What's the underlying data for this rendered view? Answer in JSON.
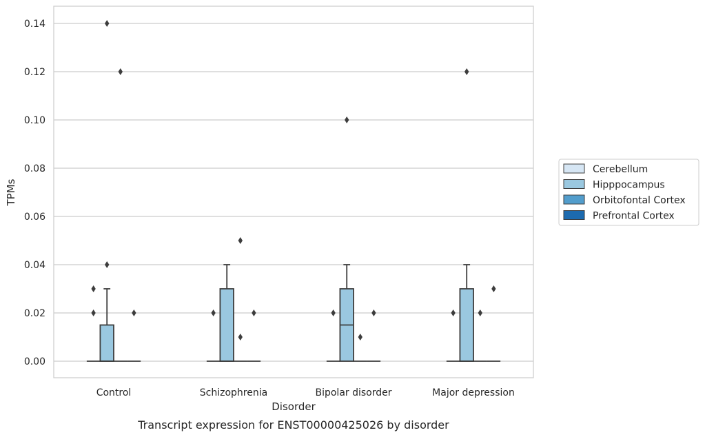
{
  "chart_data": {
    "type": "box",
    "title": "",
    "caption": "Transcript expression for ENST00000425026 by disorder",
    "xlabel": "Disorder",
    "ylabel": "TPMs",
    "ylim": [
      -0.007,
      0.147
    ],
    "yticks": [
      "0.00",
      "0.02",
      "0.04",
      "0.06",
      "0.08",
      "0.10",
      "0.12",
      "0.14"
    ],
    "categories": [
      "Control",
      "Schizophrenia",
      "Bipolar disorder",
      "Major depression"
    ],
    "grid": "horizontal",
    "legend_position": "right",
    "series": [
      {
        "name": "Cerebellum",
        "color": "#d6e6f4",
        "boxes": [
          {
            "q1": 0,
            "median": 0,
            "q3": 0,
            "whisker_low": 0,
            "whisker_high": 0,
            "outliers": [
              0.02,
              0.03
            ]
          },
          {
            "q1": 0,
            "median": 0,
            "q3": 0,
            "whisker_low": 0,
            "whisker_high": 0,
            "outliers": [
              0.02
            ]
          },
          {
            "q1": 0,
            "median": 0,
            "q3": 0,
            "whisker_low": 0,
            "whisker_high": 0,
            "outliers": [
              0.02
            ]
          },
          {
            "q1": 0,
            "median": 0,
            "q3": 0,
            "whisker_low": 0,
            "whisker_high": 0,
            "outliers": [
              0.02
            ]
          }
        ]
      },
      {
        "name": "Hipppocampus",
        "color": "#9ac8e0",
        "boxes": [
          {
            "q1": 0,
            "median": 0,
            "q3": 0.015,
            "whisker_low": 0,
            "whisker_high": 0.03,
            "outliers": [
              0.04,
              0.14
            ]
          },
          {
            "q1": 0,
            "median": 0,
            "q3": 0.03,
            "whisker_low": 0,
            "whisker_high": 0.04,
            "outliers": []
          },
          {
            "q1": 0,
            "median": 0.015,
            "q3": 0.03,
            "whisker_low": 0,
            "whisker_high": 0.04,
            "outliers": [
              0.1
            ]
          },
          {
            "q1": 0,
            "median": 0,
            "q3": 0.03,
            "whisker_low": 0,
            "whisker_high": 0.04,
            "outliers": [
              0.12
            ]
          }
        ]
      },
      {
        "name": "Orbitofontal Cortex",
        "color": "#529dcc",
        "boxes": [
          {
            "q1": 0,
            "median": 0,
            "q3": 0,
            "whisker_low": 0,
            "whisker_high": 0,
            "outliers": [
              0.12
            ]
          },
          {
            "q1": 0,
            "median": 0,
            "q3": 0,
            "whisker_low": 0,
            "whisker_high": 0,
            "outliers": [
              0.01,
              0.05
            ]
          },
          {
            "q1": 0,
            "median": 0,
            "q3": 0,
            "whisker_low": 0,
            "whisker_high": 0,
            "outliers": [
              0.01
            ]
          },
          {
            "q1": 0,
            "median": 0,
            "q3": 0,
            "whisker_low": 0,
            "whisker_high": 0,
            "outliers": [
              0.02
            ]
          }
        ]
      },
      {
        "name": "Prefrontal Cortex",
        "color": "#1c6aaf",
        "boxes": [
          {
            "q1": 0,
            "median": 0,
            "q3": 0,
            "whisker_low": 0,
            "whisker_high": 0,
            "outliers": [
              0.02
            ]
          },
          {
            "q1": 0,
            "median": 0,
            "q3": 0,
            "whisker_low": 0,
            "whisker_high": 0,
            "outliers": [
              0.02
            ]
          },
          {
            "q1": 0,
            "median": 0,
            "q3": 0,
            "whisker_low": 0,
            "whisker_high": 0,
            "outliers": [
              0.02
            ]
          },
          {
            "q1": 0,
            "median": 0,
            "q3": 0,
            "whisker_low": 0,
            "whisker_high": 0,
            "outliers": [
              0.03
            ]
          }
        ]
      }
    ]
  }
}
